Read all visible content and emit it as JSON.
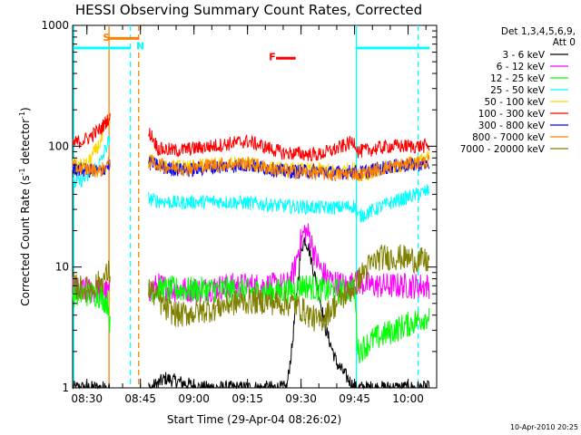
{
  "chart_data": {
    "type": "line",
    "title": "HESSI Observing Summary Count Rates, Corrected",
    "xlabel": "Start Time (29-Apr-04 08:26:02)",
    "ylabel": "Corrected Count Rate (s",
    "ylabel_sup1": "-1",
    "ylabel_mid": " detector",
    "ylabel_sup2": "-1",
    "ylabel_end": ")",
    "y_scale": "log",
    "ylim": [
      1,
      1000
    ],
    "y_ticks": [
      {
        "v": 1,
        "label": "1"
      },
      {
        "v": 10,
        "label": "10"
      },
      {
        "v": 100,
        "label": "100"
      },
      {
        "v": 1000,
        "label": "1000"
      }
    ],
    "xlim": [
      26.0,
      128.0
    ],
    "x_ticks": [
      {
        "v": 30,
        "label": "08:30"
      },
      {
        "v": 45,
        "label": "08:45"
      },
      {
        "v": 60,
        "label": "09:00"
      },
      {
        "v": 75,
        "label": "09:15"
      },
      {
        "v": 90,
        "label": "09:30"
      },
      {
        "v": 105,
        "label": "09:45"
      },
      {
        "v": 120,
        "label": "10:00"
      }
    ],
    "legend_title_1": "Det 1,3,4,5,6,9,",
    "legend_title_2": "Att 0",
    "legend_position": "right",
    "grid": false,
    "timestamp": "10-Apr-2010 20:25",
    "series": [
      {
        "name": "3 - 6 keV",
        "color": "#000000",
        "x": [
          26,
          48,
          52,
          62,
          72,
          82,
          86,
          87.5,
          89,
          90,
          91,
          92,
          93,
          95,
          97,
          100,
          105,
          110,
          120,
          126
        ],
        "y": [
          1,
          1,
          1.2,
          1,
          1,
          1,
          1,
          2.2,
          7,
          14,
          17,
          15,
          11,
          6,
          3,
          1.6,
          1,
          1,
          1,
          1
        ]
      },
      {
        "name": "6 - 12 keV",
        "color": "#ff00ff",
        "x": [
          26,
          37,
          48,
          50,
          55,
          62,
          70,
          80,
          86,
          88,
          89.5,
          91,
          92.5,
          94,
          96,
          99,
          103,
          106,
          110,
          126
        ],
        "y": [
          6.5,
          6.2,
          6.5,
          7,
          6.5,
          6.5,
          7,
          7,
          7,
          9,
          15,
          20,
          18,
          12,
          9,
          7.5,
          7,
          7.5,
          7,
          7
        ]
      },
      {
        "name": "12 - 25 keV",
        "color": "#00ff00",
        "x": [
          26,
          33,
          36,
          37,
          48,
          52,
          60,
          70,
          80,
          88,
          90,
          92,
          95,
          100,
          105,
          106,
          110,
          126
        ],
        "y": [
          6,
          6,
          5,
          2,
          6.5,
          6.5,
          6.5,
          6.5,
          6.2,
          6.5,
          7,
          7,
          6.5,
          6.3,
          6.5,
          2,
          2.5,
          4
        ]
      },
      {
        "name": "25 - 50 keV",
        "color": "#00ffff",
        "x": [
          26,
          30,
          34,
          36,
          48,
          55,
          65,
          75,
          85,
          95,
          100,
          105,
          106,
          115,
          126
        ],
        "y": [
          48,
          55,
          75,
          110,
          36,
          34,
          35,
          34,
          32,
          31,
          31,
          32,
          26,
          34,
          43
        ]
      },
      {
        "name": "50 - 100 keV",
        "color": "#ffd800",
        "x": [
          26,
          30,
          34,
          36,
          48,
          50,
          55,
          65,
          75,
          85,
          95,
          100,
          105,
          106,
          115,
          126
        ],
        "y": [
          70,
          70,
          110,
          160,
          75,
          70,
          68,
          70,
          72,
          64,
          64,
          62,
          65,
          58,
          65,
          80
        ]
      },
      {
        "name": "100 - 300 keV",
        "color": "#ff0000",
        "x": [
          26,
          30,
          34,
          36,
          48,
          50,
          55,
          65,
          75,
          85,
          95,
          100,
          105,
          106,
          115,
          126
        ],
        "y": [
          105,
          115,
          140,
          170,
          125,
          95,
          92,
          100,
          110,
          88,
          85,
          95,
          110,
          90,
          100,
          100
        ]
      },
      {
        "name": "300 - 800 keV",
        "color": "#0000ff",
        "x": [
          26,
          30,
          34,
          36,
          48,
          52,
          58,
          65,
          75,
          85,
          95,
          100,
          105,
          106,
          115,
          126
        ],
        "y": [
          65,
          63,
          62,
          70,
          72,
          66,
          63,
          67,
          70,
          62,
          62,
          60,
          62,
          60,
          68,
          72
        ]
      },
      {
        "name": "800 - 7000 keV",
        "color": "#ff8000",
        "x": [
          26,
          30,
          34,
          36,
          48,
          52,
          58,
          65,
          75,
          85,
          95,
          100,
          105,
          106,
          115,
          126
        ],
        "y": [
          68,
          64,
          63,
          72,
          74,
          68,
          65,
          70,
          72,
          62,
          60,
          58,
          60,
          58,
          68,
          75
        ]
      },
      {
        "name": "7000 - 20000 keV",
        "color": "#808000",
        "x": [
          26,
          30,
          34,
          36,
          48,
          52,
          56,
          60,
          65,
          70,
          75,
          80,
          85,
          88,
          90,
          95,
          100,
          105,
          108,
          112,
          118,
          126
        ],
        "y": [
          7,
          6.5,
          7.5,
          9,
          6.5,
          4.5,
          4,
          4.2,
          4.5,
          5,
          5.2,
          5.2,
          5,
          5,
          4.5,
          3.5,
          5,
          7,
          9.5,
          12,
          12,
          11
        ]
      }
    ],
    "markers": [
      {
        "x": 26.3,
        "color": "#00ffff",
        "style": "solid"
      },
      {
        "x": 36.2,
        "color": "#ff8000",
        "style": "solid"
      },
      {
        "x": 42.2,
        "color": "#00ffff",
        "style": "dashed"
      },
      {
        "x": 44.5,
        "color": "#ff8000",
        "style": "dashed"
      },
      {
        "x": 105.5,
        "color": "#00ffff",
        "style": "solid"
      },
      {
        "x": 122.8,
        "color": "#00ffff",
        "style": "dashed"
      }
    ],
    "night_bars": [
      {
        "x0": 26.3,
        "x1": 42.2,
        "y": 650,
        "color": "#00ffff"
      },
      {
        "x0": 105.5,
        "x1": 126,
        "y": 650,
        "color": "#00ffff"
      }
    ],
    "annotations": [
      {
        "text": "S",
        "color": "#ff8000",
        "label_x": 34.5,
        "label_y": 800,
        "x0": 36.2,
        "x1": 44.5,
        "y": 780
      },
      {
        "text": "N",
        "color": "#00ffff",
        "label_x": 43.8,
        "label_y": 680
      },
      {
        "text": "F",
        "color": "#ff0000",
        "label_x": 81,
        "label_y": 550,
        "x0": 83,
        "x1": 88.5,
        "y": 535
      }
    ]
  }
}
